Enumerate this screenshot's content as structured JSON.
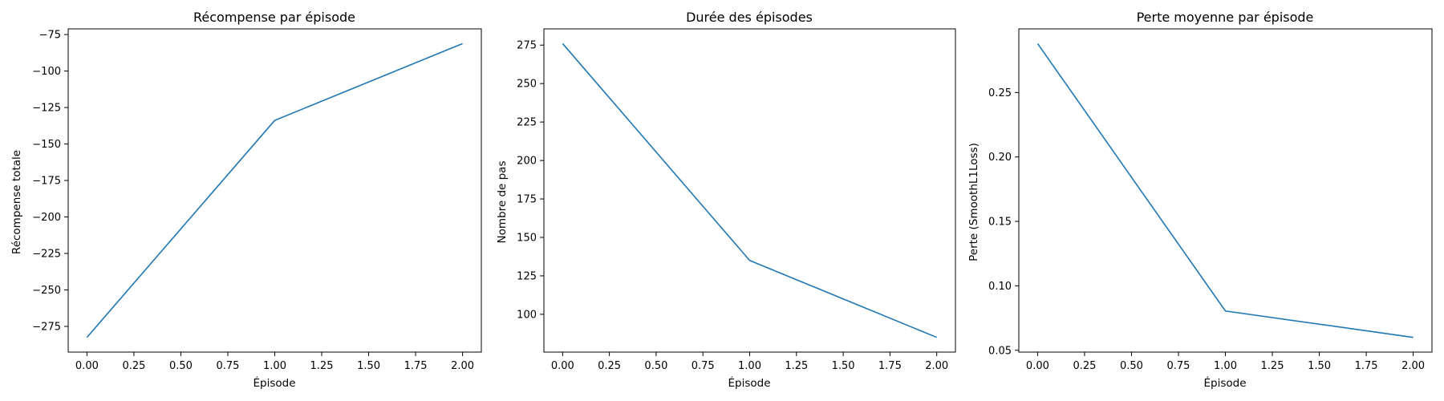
{
  "chart_data": [
    {
      "type": "line",
      "title": "Récompense par épisode",
      "xlabel": "Épisode",
      "ylabel": "Récompense totale",
      "x": [
        0,
        1,
        2
      ],
      "series": [
        {
          "values": [
            -282.5,
            -133.8,
            -81.2
          ],
          "color": "#1f77b4"
        }
      ],
      "xlim": [
        -0.1,
        2.1
      ],
      "ylim": [
        -292.6,
        -71.1
      ],
      "xticks": [
        0,
        0.25,
        0.5,
        0.75,
        1.0,
        1.25,
        1.5,
        1.75,
        2.0
      ],
      "xtick_labels": [
        "0.00",
        "0.25",
        "0.50",
        "0.75",
        "1.00",
        "1.25",
        "1.50",
        "1.75",
        "2.00"
      ],
      "yticks": [
        -275,
        -250,
        -225,
        -200,
        -175,
        -150,
        -125,
        -100,
        -75
      ],
      "ytick_labels": [
        "−275",
        "−250",
        "−225",
        "−200",
        "−175",
        "−150",
        "−125",
        "−100",
        "−75"
      ],
      "grid": false,
      "legend": "none"
    },
    {
      "type": "line",
      "title": "Durée des épisodes",
      "xlabel": "Épisode",
      "ylabel": "Nombre de pas",
      "x": [
        0,
        1,
        2
      ],
      "series": [
        {
          "values": [
            276,
            135,
            85
          ],
          "color": "#1f77b4"
        }
      ],
      "xlim": [
        -0.1,
        2.1
      ],
      "ylim": [
        75.45,
        285.55
      ],
      "xticks": [
        0,
        0.25,
        0.5,
        0.75,
        1.0,
        1.25,
        1.5,
        1.75,
        2.0
      ],
      "xtick_labels": [
        "0.00",
        "0.25",
        "0.50",
        "0.75",
        "1.00",
        "1.25",
        "1.50",
        "1.75",
        "2.00"
      ],
      "yticks": [
        100,
        125,
        150,
        175,
        200,
        225,
        250,
        275
      ],
      "ytick_labels": [
        "100",
        "125",
        "150",
        "175",
        "200",
        "225",
        "250",
        "275"
      ],
      "grid": false,
      "legend": "none"
    },
    {
      "type": "line",
      "title": "Perte moyenne par épisode",
      "xlabel": "Épisode",
      "ylabel": "Perte (SmoothL1Loss)",
      "x": [
        0,
        1,
        2
      ],
      "series": [
        {
          "values": [
            0.288,
            0.0805,
            0.06
          ],
          "color": "#1f77b4"
        }
      ],
      "xlim": [
        -0.1,
        2.1
      ],
      "ylim": [
        0.0486,
        0.2994
      ],
      "xticks": [
        0,
        0.25,
        0.5,
        0.75,
        1.0,
        1.25,
        1.5,
        1.75,
        2.0
      ],
      "xtick_labels": [
        "0.00",
        "0.25",
        "0.50",
        "0.75",
        "1.00",
        "1.25",
        "1.50",
        "1.75",
        "2.00"
      ],
      "yticks": [
        0.05,
        0.1,
        0.15,
        0.2,
        0.25
      ],
      "ytick_labels": [
        "0.05",
        "0.10",
        "0.15",
        "0.20",
        "0.25"
      ],
      "grid": false,
      "legend": "none"
    }
  ]
}
